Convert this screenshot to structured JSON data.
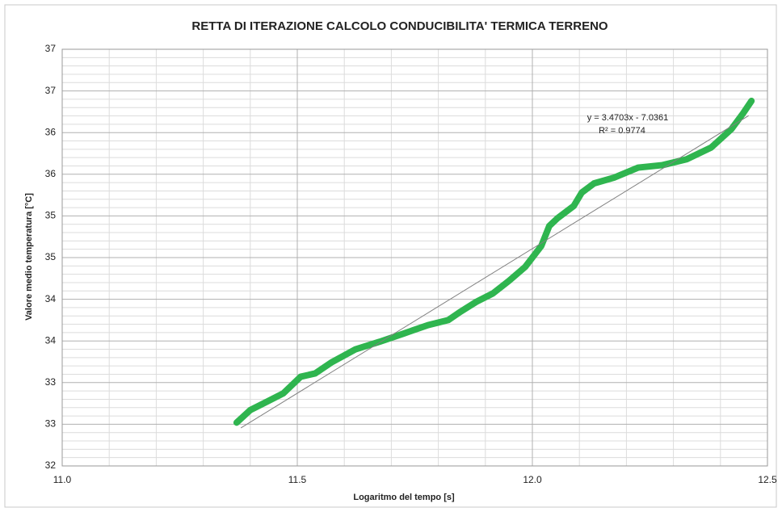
{
  "chart_data": {
    "type": "line",
    "title": "RETTA DI ITERAZIONE CALCOLO CONDUCIBILITA' TERMICA TERRENO",
    "xlabel": "Logaritmo del tempo [s]",
    "ylabel": "Valore medio temperatura [°C]",
    "xlim": [
      11.0,
      12.5
    ],
    "xticks": [
      {
        "value": 11.0,
        "label": "11.0"
      },
      {
        "value": 11.5,
        "label": "11.5"
      },
      {
        "value": 12.0,
        "label": "12.0"
      },
      {
        "value": 12.5,
        "label": "12.5"
      }
    ],
    "ylim": [
      32,
      37
    ],
    "yticks": [
      32,
      {
        "value": 32.5,
        "label": "33"
      },
      33,
      {
        "value": 33.5,
        "label": "34"
      },
      34,
      {
        "value": 34.5,
        "label": "35"
      },
      35,
      {
        "value": 35.5,
        "label": "36"
      },
      36,
      {
        "value": 36.5,
        "label": "37"
      },
      37
    ],
    "grid": true,
    "series": [
      {
        "name": "Valore medio temperatura",
        "color": "#2fb54f",
        "x": [
          11.371,
          11.4,
          11.435,
          11.47,
          11.507,
          11.538,
          11.572,
          11.624,
          11.675,
          11.727,
          11.778,
          11.821,
          11.847,
          11.881,
          11.916,
          11.95,
          11.985,
          12.019,
          12.036,
          12.053,
          12.088,
          12.105,
          12.131,
          12.174,
          12.225,
          12.277,
          12.328,
          12.38,
          12.423,
          12.448,
          12.466
        ],
        "values": [
          32.52,
          32.67,
          32.77,
          32.87,
          33.07,
          33.11,
          33.24,
          33.4,
          33.49,
          33.59,
          33.69,
          33.75,
          33.85,
          33.97,
          34.07,
          34.22,
          34.39,
          34.64,
          34.88,
          34.97,
          35.12,
          35.28,
          35.39,
          35.46,
          35.58,
          35.61,
          35.68,
          35.82,
          36.04,
          36.23,
          36.38
        ]
      }
    ],
    "trendline": {
      "slope": 3.4703,
      "intercept": -7.0361,
      "x": [
        11.38,
        12.46
      ],
      "color": "#808080",
      "equation": "y = 3.4703x - 7.0361",
      "r2": "R² = 0.9774"
    }
  }
}
